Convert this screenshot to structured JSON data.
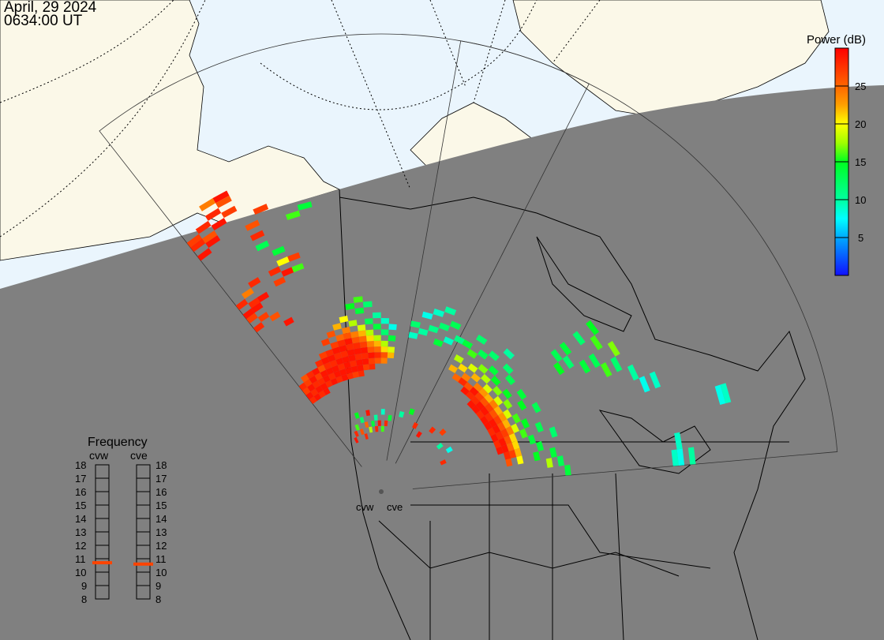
{
  "header": {
    "date": "April, 29 2024",
    "time": "0634:00 UT"
  },
  "colors": {
    "day": "#eaf5fd",
    "land_day": "#fbf8e8",
    "night": "#808080",
    "coast": "#000000",
    "freq_marker": "#ff4400"
  },
  "colorbar": {
    "title": "Power (dB)",
    "range": [
      0,
      30
    ],
    "ticks": [
      "5",
      "10",
      "15",
      "20",
      "25"
    ],
    "tick_values": [
      5,
      10,
      15,
      20,
      25
    ],
    "stops": [
      {
        "v": 0,
        "c": "#1010ff"
      },
      {
        "v": 5,
        "c": "#00aaff"
      },
      {
        "v": 7.5,
        "c": "#00ffff"
      },
      {
        "v": 10,
        "c": "#00ffa0"
      },
      {
        "v": 15,
        "c": "#00ff20"
      },
      {
        "v": 17.5,
        "c": "#a0ff00"
      },
      {
        "v": 20,
        "c": "#ffff00"
      },
      {
        "v": 22.5,
        "c": "#ffa000"
      },
      {
        "v": 25,
        "c": "#ff6600"
      },
      {
        "v": 30,
        "c": "#ff0000"
      }
    ]
  },
  "frequency": {
    "title": "Frequency",
    "unit_range": [
      8,
      18
    ],
    "ticks": [
      "18",
      "17",
      "16",
      "15",
      "14",
      "13",
      "12",
      "11",
      "10",
      "9",
      "8"
    ],
    "radars": [
      {
        "name": "cvw",
        "value": 10.7
      },
      {
        "name": "cve",
        "value": 10.6
      }
    ]
  },
  "radars": [
    {
      "name": "cvw",
      "label": "cvw",
      "boresight_range": [
        -38,
        27
      ],
      "beams": 24,
      "gates": 75
    },
    {
      "name": "cve",
      "label": "cve",
      "boresight_range": [
        10,
        85
      ],
      "beams": 24,
      "gates": 75
    }
  ],
  "chart_data": {
    "type": "heatmap",
    "description_fields": [
      "beam",
      "gate",
      "power_dB"
    ],
    "cvw": [
      [
        0,
        14,
        28
      ],
      [
        0,
        15,
        29
      ],
      [
        0,
        16,
        27
      ],
      [
        0,
        17,
        28
      ],
      [
        1,
        14,
        29
      ],
      [
        1,
        15,
        28
      ],
      [
        1,
        16,
        29
      ],
      [
        1,
        17,
        27
      ],
      [
        1,
        18,
        26
      ],
      [
        2,
        14,
        28
      ],
      [
        2,
        15,
        29
      ],
      [
        2,
        16,
        28
      ],
      [
        2,
        17,
        29
      ],
      [
        2,
        18,
        28
      ],
      [
        3,
        14,
        29
      ],
      [
        3,
        15,
        29
      ],
      [
        3,
        16,
        28
      ],
      [
        3,
        17,
        27
      ],
      [
        3,
        18,
        29
      ],
      [
        4,
        15,
        28
      ],
      [
        4,
        16,
        29
      ],
      [
        4,
        17,
        29
      ],
      [
        4,
        18,
        26
      ],
      [
        4,
        19,
        28
      ],
      [
        5,
        15,
        29
      ],
      [
        5,
        16,
        28
      ],
      [
        5,
        17,
        29
      ],
      [
        5,
        18,
        28
      ],
      [
        5,
        19,
        29
      ],
      [
        5,
        20,
        27
      ],
      [
        6,
        15,
        28
      ],
      [
        6,
        16,
        29
      ],
      [
        6,
        17,
        29
      ],
      [
        6,
        18,
        28
      ],
      [
        6,
        19,
        29
      ],
      [
        6,
        20,
        28
      ],
      [
        6,
        22,
        27
      ],
      [
        7,
        15,
        29
      ],
      [
        7,
        16,
        29
      ],
      [
        7,
        17,
        28
      ],
      [
        7,
        18,
        29
      ],
      [
        7,
        19,
        28
      ],
      [
        7,
        20,
        29
      ],
      [
        7,
        21,
        27
      ],
      [
        7,
        23,
        26
      ],
      [
        8,
        15,
        28
      ],
      [
        8,
        16,
        29
      ],
      [
        8,
        17,
        29
      ],
      [
        8,
        18,
        29
      ],
      [
        8,
        19,
        28
      ],
      [
        8,
        20,
        29
      ],
      [
        8,
        21,
        28
      ],
      [
        8,
        22,
        25
      ],
      [
        8,
        24,
        22
      ],
      [
        9,
        15,
        27
      ],
      [
        9,
        16,
        29
      ],
      [
        9,
        17,
        28
      ],
      [
        9,
        18,
        29
      ],
      [
        9,
        19,
        29
      ],
      [
        9,
        20,
        28
      ],
      [
        9,
        21,
        29
      ],
      [
        9,
        22,
        26
      ],
      [
        9,
        23,
        24
      ],
      [
        9,
        25,
        20
      ],
      [
        10,
        15,
        28
      ],
      [
        10,
        16,
        29
      ],
      [
        10,
        17,
        29
      ],
      [
        10,
        18,
        28
      ],
      [
        10,
        19,
        29
      ],
      [
        10,
        20,
        28
      ],
      [
        10,
        21,
        26
      ],
      [
        10,
        22,
        24
      ],
      [
        10,
        24,
        18
      ],
      [
        10,
        27,
        15
      ],
      [
        11,
        16,
        27
      ],
      [
        11,
        17,
        29
      ],
      [
        11,
        18,
        28
      ],
      [
        11,
        19,
        29
      ],
      [
        11,
        20,
        27
      ],
      [
        11,
        21,
        25
      ],
      [
        11,
        22,
        22
      ],
      [
        11,
        23,
        19
      ],
      [
        11,
        26,
        14
      ],
      [
        11,
        28,
        16
      ],
      [
        12,
        16,
        28
      ],
      [
        12,
        17,
        27
      ],
      [
        12,
        18,
        29
      ],
      [
        12,
        19,
        26
      ],
      [
        12,
        20,
        24
      ],
      [
        12,
        21,
        21
      ],
      [
        12,
        22,
        18
      ],
      [
        12,
        24,
        13
      ],
      [
        12,
        27,
        12
      ],
      [
        13,
        17,
        26
      ],
      [
        13,
        18,
        28
      ],
      [
        13,
        19,
        25
      ],
      [
        13,
        20,
        22
      ],
      [
        13,
        21,
        18
      ],
      [
        13,
        23,
        14
      ],
      [
        13,
        25,
        10
      ],
      [
        14,
        17,
        24
      ],
      [
        14,
        18,
        26
      ],
      [
        14,
        19,
        21
      ],
      [
        14,
        20,
        18
      ],
      [
        14,
        22,
        12
      ],
      [
        14,
        24,
        9
      ],
      [
        15,
        18,
        22
      ],
      [
        15,
        19,
        19
      ],
      [
        15,
        21,
        14
      ],
      [
        15,
        23,
        8
      ],
      [
        0,
        30,
        28
      ],
      [
        0,
        32,
        27
      ],
      [
        0,
        33,
        29
      ],
      [
        0,
        35,
        28
      ],
      [
        1,
        31,
        27
      ],
      [
        1,
        33,
        29
      ],
      [
        1,
        34,
        28
      ],
      [
        1,
        36,
        24
      ],
      [
        2,
        30,
        26
      ],
      [
        2,
        34,
        29
      ],
      [
        2,
        37,
        28
      ],
      [
        3,
        28,
        29
      ],
      [
        4,
        35,
        27
      ],
      [
        4,
        37,
        28
      ],
      [
        5,
        36,
        29
      ],
      [
        5,
        38,
        20
      ],
      [
        6,
        38,
        27
      ],
      [
        6,
        36,
        16
      ],
      [
        5,
        40,
        14
      ],
      [
        0,
        46,
        29
      ],
      [
        0,
        48,
        28
      ],
      [
        0,
        49,
        27
      ],
      [
        1,
        47,
        29
      ],
      [
        1,
        48,
        26
      ],
      [
        1,
        50,
        28
      ],
      [
        2,
        49,
        29
      ],
      [
        2,
        51,
        28
      ],
      [
        3,
        52,
        26
      ],
      [
        3,
        53,
        29
      ],
      [
        2,
        53,
        24
      ],
      [
        3,
        50,
        27
      ],
      [
        4,
        44,
        28
      ],
      [
        4,
        46,
        26
      ],
      [
        5,
        48,
        27
      ],
      [
        4,
        42,
        13
      ],
      [
        7,
        45,
        16
      ],
      [
        8,
        46,
        14
      ],
      [
        4,
        4,
        29
      ],
      [
        5,
        5,
        28
      ],
      [
        6,
        6,
        16
      ],
      [
        7,
        5,
        26
      ],
      [
        7,
        8,
        15
      ],
      [
        8,
        4,
        28
      ],
      [
        8,
        7,
        12
      ],
      [
        9,
        6,
        25
      ],
      [
        10,
        5,
        18
      ],
      [
        10,
        8,
        29
      ],
      [
        11,
        6,
        14
      ],
      [
        12,
        5,
        28
      ],
      [
        12,
        7,
        10
      ],
      [
        13,
        6,
        29
      ],
      [
        14,
        5,
        16
      ],
      [
        14,
        8,
        9
      ],
      [
        15,
        6,
        28
      ],
      [
        16,
        7,
        14
      ]
    ],
    "cve": [
      [
        0,
        22,
        9
      ],
      [
        0,
        24,
        12
      ],
      [
        1,
        23,
        10
      ],
      [
        1,
        26,
        8
      ],
      [
        2,
        24,
        11
      ],
      [
        2,
        27,
        9
      ],
      [
        3,
        22,
        14
      ],
      [
        3,
        25,
        12
      ],
      [
        3,
        28,
        10
      ],
      [
        4,
        23,
        9
      ],
      [
        4,
        26,
        13
      ],
      [
        5,
        24,
        11
      ],
      [
        6,
        19,
        22
      ],
      [
        6,
        21,
        18
      ],
      [
        6,
        24,
        14
      ],
      [
        7,
        18,
        25
      ],
      [
        7,
        20,
        21
      ],
      [
        7,
        23,
        16
      ],
      [
        7,
        26,
        12
      ],
      [
        8,
        18,
        28
      ],
      [
        8,
        19,
        24
      ],
      [
        8,
        21,
        19
      ],
      [
        8,
        24,
        13
      ],
      [
        9,
        17,
        29
      ],
      [
        9,
        18,
        26
      ],
      [
        9,
        20,
        22
      ],
      [
        9,
        22,
        17
      ],
      [
        9,
        25,
        12
      ],
      [
        10,
        17,
        28
      ],
      [
        10,
        18,
        29
      ],
      [
        10,
        19,
        24
      ],
      [
        10,
        21,
        18
      ],
      [
        10,
        23,
        14
      ],
      [
        10,
        27,
        10
      ],
      [
        11,
        16,
        29
      ],
      [
        11,
        17,
        28
      ],
      [
        11,
        18,
        27
      ],
      [
        11,
        19,
        23
      ],
      [
        11,
        20,
        19
      ],
      [
        11,
        22,
        15
      ],
      [
        11,
        25,
        12
      ],
      [
        12,
        16,
        29
      ],
      [
        12,
        17,
        29
      ],
      [
        12,
        18,
        26
      ],
      [
        12,
        19,
        22
      ],
      [
        12,
        21,
        17
      ],
      [
        12,
        24,
        13
      ],
      [
        13,
        16,
        28
      ],
      [
        13,
        17,
        29
      ],
      [
        13,
        18,
        27
      ],
      [
        13,
        19,
        24
      ],
      [
        13,
        20,
        19
      ],
      [
        13,
        22,
        15
      ],
      [
        13,
        33,
        13
      ],
      [
        13,
        35,
        14
      ],
      [
        13,
        38,
        12
      ],
      [
        13,
        41,
        15
      ],
      [
        14,
        16,
        29
      ],
      [
        14,
        17,
        28
      ],
      [
        14,
        18,
        26
      ],
      [
        14,
        19,
        22
      ],
      [
        14,
        21,
        17
      ],
      [
        14,
        24,
        14
      ],
      [
        14,
        32,
        15
      ],
      [
        14,
        34,
        12
      ],
      [
        14,
        40,
        16
      ],
      [
        15,
        16,
        29
      ],
      [
        15,
        17,
        29
      ],
      [
        15,
        18,
        27
      ],
      [
        15,
        19,
        23
      ],
      [
        15,
        20,
        19
      ],
      [
        15,
        23,
        15
      ],
      [
        15,
        36,
        14
      ],
      [
        15,
        38,
        13
      ],
      [
        15,
        42,
        17
      ],
      [
        16,
        16,
        28
      ],
      [
        16,
        17,
        29
      ],
      [
        16,
        18,
        26
      ],
      [
        16,
        19,
        22
      ],
      [
        16,
        21,
        16
      ],
      [
        16,
        25,
        13
      ],
      [
        16,
        39,
        16
      ],
      [
        16,
        41,
        12
      ],
      [
        17,
        16,
        29
      ],
      [
        17,
        17,
        28
      ],
      [
        17,
        18,
        27
      ],
      [
        17,
        19,
        24
      ],
      [
        17,
        20,
        19
      ],
      [
        17,
        22,
        15
      ],
      [
        17,
        43,
        10
      ],
      [
        18,
        16,
        28
      ],
      [
        18,
        17,
        29
      ],
      [
        18,
        18,
        26
      ],
      [
        18,
        19,
        21
      ],
      [
        18,
        21,
        16
      ],
      [
        18,
        24,
        13
      ],
      [
        18,
        44,
        8
      ],
      [
        18,
        46,
        9
      ],
      [
        19,
        16,
        29
      ],
      [
        19,
        17,
        29
      ],
      [
        19,
        18,
        25
      ],
      [
        19,
        19,
        21
      ],
      [
        19,
        22,
        14
      ],
      [
        19,
        26,
        12
      ],
      [
        20,
        17,
        28
      ],
      [
        20,
        18,
        27
      ],
      [
        20,
        19,
        22
      ],
      [
        20,
        23,
        14
      ],
      [
        20,
        56,
        8
      ],
      [
        20,
        57,
        9
      ],
      [
        21,
        17,
        26
      ],
      [
        21,
        19,
        20
      ],
      [
        21,
        22,
        15
      ],
      [
        21,
        25,
        14
      ],
      [
        22,
        24,
        18
      ],
      [
        22,
        26,
        13
      ],
      [
        23,
        27,
        14
      ],
      [
        23,
        46,
        9
      ],
      [
        23,
        47,
        8
      ],
      [
        23,
        49,
        10
      ],
      [
        22,
        47,
        9
      ],
      [
        1,
        8,
        10
      ],
      [
        3,
        9,
        15
      ],
      [
        5,
        7,
        28
      ],
      [
        7,
        6,
        29
      ],
      [
        9,
        8,
        28
      ],
      [
        11,
        9,
        27
      ],
      [
        13,
        7,
        10
      ],
      [
        15,
        8,
        8
      ],
      [
        17,
        6,
        28
      ]
    ]
  }
}
